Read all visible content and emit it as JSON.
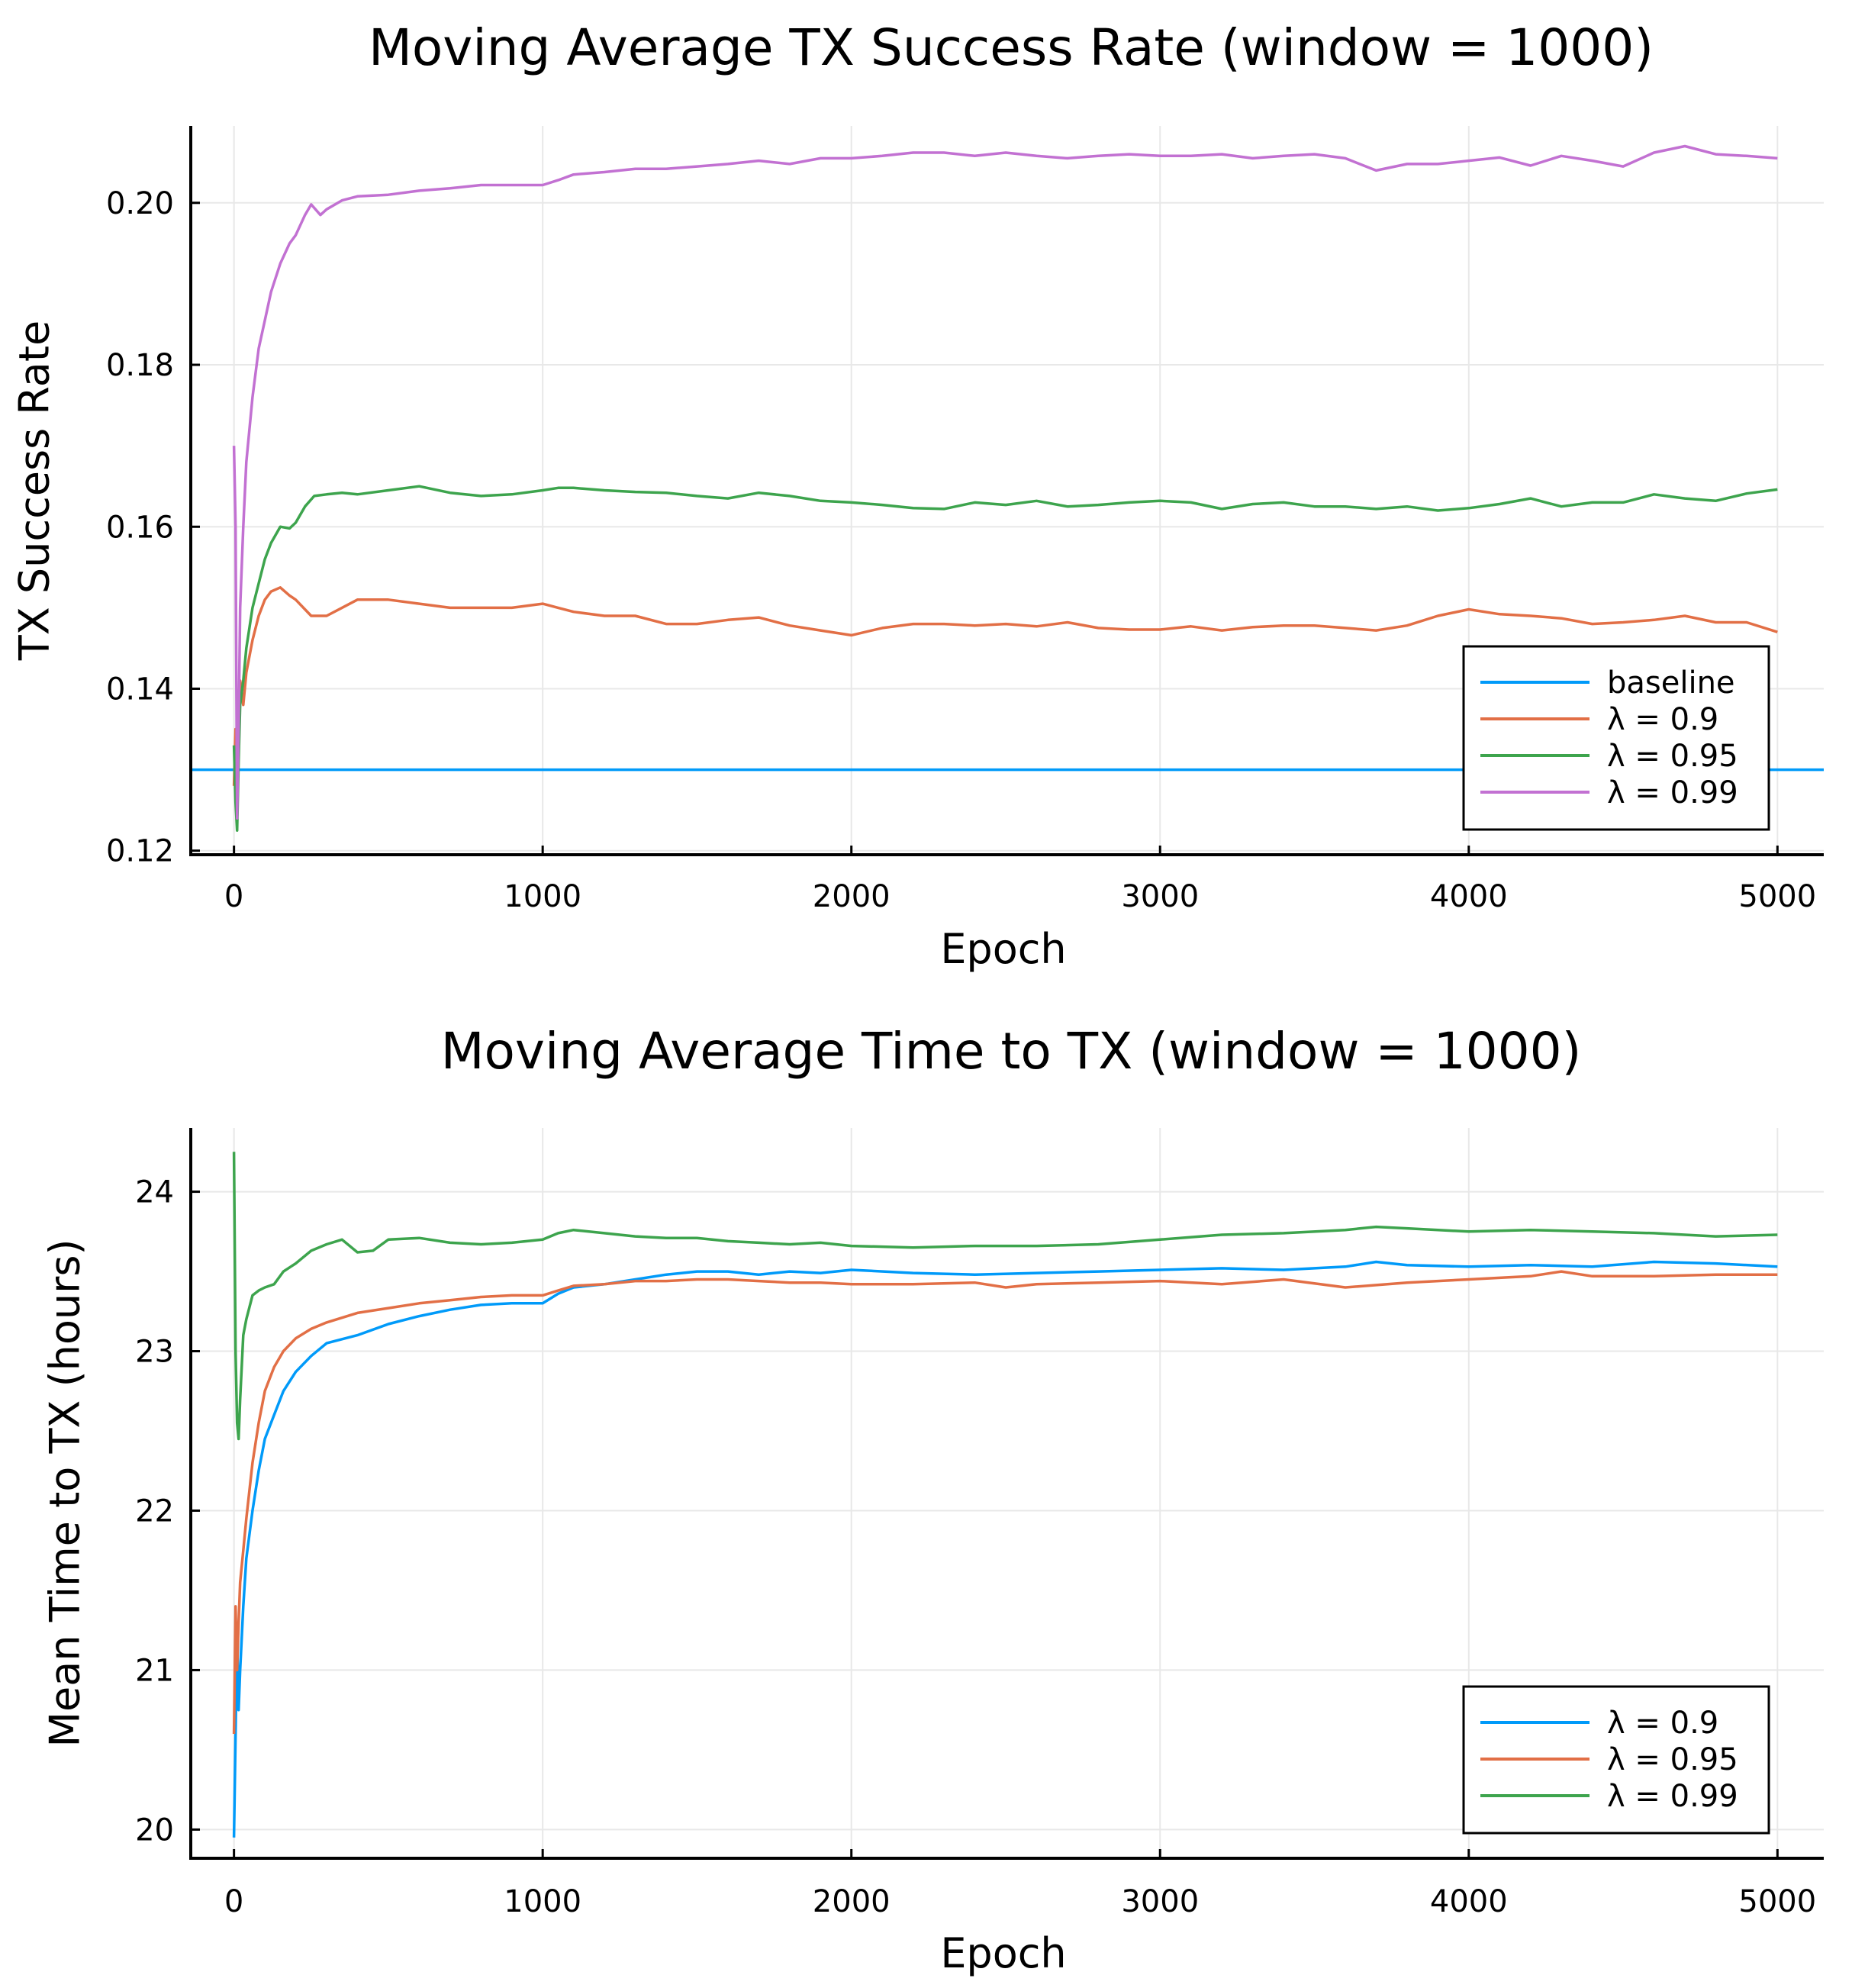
{
  "chart_data": [
    {
      "type": "line",
      "title": "Moving Average TX Success Rate (window = 1000)",
      "xlabel": "Epoch",
      "ylabel": "TX Success Rate",
      "xlim": [
        -140,
        5150
      ],
      "ylim": [
        0.1195,
        0.2095
      ],
      "xticks": [
        0,
        1000,
        2000,
        3000,
        4000,
        5000
      ],
      "xtick_labels": [
        "0",
        "1000",
        "2000",
        "3000",
        "4000",
        "5000"
      ],
      "yticks": [
        0.12,
        0.14,
        0.16,
        0.18,
        0.2
      ],
      "ytick_labels": [
        "0.12",
        "0.14",
        "0.16",
        "0.18",
        "0.20"
      ],
      "grid": true,
      "legend_position": "bottom-right",
      "series": [
        {
          "name": "baseline",
          "color": "#009af9",
          "x": [
            -140,
            5150
          ],
          "y": [
            0.13,
            0.13
          ]
        },
        {
          "name": "λ = 0.9",
          "color": "#e26f46",
          "x": [
            0,
            5,
            10,
            15,
            20,
            30,
            40,
            60,
            80,
            100,
            120,
            150,
            180,
            200,
            250,
            300,
            350,
            400,
            500,
            600,
            700,
            800,
            900,
            1000,
            1050,
            1100,
            1200,
            1300,
            1400,
            1500,
            1600,
            1700,
            1800,
            1900,
            2000,
            2100,
            2200,
            2300,
            2400,
            2500,
            2600,
            2700,
            2800,
            2900,
            3000,
            3100,
            3200,
            3300,
            3400,
            3500,
            3600,
            3700,
            3800,
            3900,
            4000,
            4100,
            4200,
            4300,
            4400,
            4500,
            4600,
            4700,
            4800,
            4900,
            5000
          ],
          "y": [
            0.128,
            0.135,
            0.125,
            0.139,
            0.141,
            0.138,
            0.142,
            0.146,
            0.149,
            0.151,
            0.152,
            0.1525,
            0.1515,
            0.151,
            0.149,
            0.149,
            0.15,
            0.151,
            0.151,
            0.1505,
            0.15,
            0.15,
            0.15,
            0.1505,
            0.15,
            0.1495,
            0.149,
            0.149,
            0.148,
            0.148,
            0.1485,
            0.1488,
            0.1478,
            0.1472,
            0.1466,
            0.1475,
            0.148,
            0.148,
            0.1478,
            0.148,
            0.1477,
            0.1482,
            0.1475,
            0.1473,
            0.1473,
            0.1477,
            0.1472,
            0.1476,
            0.1478,
            0.1478,
            0.1475,
            0.1472,
            0.1478,
            0.149,
            0.1498,
            0.1492,
            0.149,
            0.1487,
            0.148,
            0.1482,
            0.1485,
            0.149,
            0.1482,
            0.1482,
            0.147
          ]
        },
        {
          "name": "λ = 0.95",
          "color": "#3da44d",
          "x": [
            0,
            5,
            10,
            15,
            20,
            30,
            40,
            60,
            80,
            100,
            120,
            150,
            180,
            200,
            230,
            260,
            300,
            350,
            400,
            500,
            600,
            700,
            800,
            900,
            1000,
            1050,
            1100,
            1200,
            1300,
            1400,
            1500,
            1600,
            1700,
            1800,
            1900,
            2000,
            2100,
            2200,
            2300,
            2400,
            2500,
            2600,
            2700,
            2800,
            2900,
            3000,
            3100,
            3200,
            3300,
            3400,
            3500,
            3600,
            3700,
            3800,
            3900,
            4000,
            4100,
            4200,
            4300,
            4400,
            4500,
            4600,
            4700,
            4800,
            4900,
            5000
          ],
          "y": [
            0.133,
            0.126,
            0.1225,
            0.131,
            0.138,
            0.141,
            0.145,
            0.15,
            0.153,
            0.156,
            0.158,
            0.16,
            0.1598,
            0.1605,
            0.1625,
            0.1638,
            0.164,
            0.1642,
            0.164,
            0.1645,
            0.165,
            0.1642,
            0.1638,
            0.164,
            0.1645,
            0.1648,
            0.1648,
            0.1645,
            0.1643,
            0.1642,
            0.1638,
            0.1635,
            0.1642,
            0.1638,
            0.1632,
            0.163,
            0.1627,
            0.1623,
            0.1622,
            0.163,
            0.1627,
            0.1632,
            0.1625,
            0.1627,
            0.163,
            0.1632,
            0.163,
            0.1622,
            0.1628,
            0.163,
            0.1625,
            0.1625,
            0.1622,
            0.1625,
            0.162,
            0.1623,
            0.1628,
            0.1635,
            0.1625,
            0.163,
            0.163,
            0.164,
            0.1635,
            0.1632,
            0.1641,
            0.1646
          ]
        },
        {
          "name": "λ = 0.99",
          "color": "#c271d2",
          "x": [
            0,
            5,
            10,
            15,
            20,
            30,
            40,
            60,
            80,
            100,
            120,
            150,
            180,
            200,
            230,
            250,
            280,
            300,
            350,
            400,
            500,
            600,
            700,
            800,
            900,
            1000,
            1050,
            1100,
            1200,
            1300,
            1400,
            1500,
            1600,
            1700,
            1800,
            1900,
            2000,
            2100,
            2200,
            2300,
            2400,
            2500,
            2600,
            2700,
            2800,
            2900,
            3000,
            3100,
            3200,
            3300,
            3400,
            3500,
            3600,
            3700,
            3800,
            3900,
            4000,
            4100,
            4200,
            4300,
            4400,
            4500,
            4600,
            4700,
            4800,
            4900,
            5000
          ],
          "y": [
            0.17,
            0.16,
            0.124,
            0.135,
            0.15,
            0.16,
            0.168,
            0.176,
            0.182,
            0.1855,
            0.189,
            0.1925,
            0.195,
            0.196,
            0.1985,
            0.1998,
            0.1985,
            0.1992,
            0.2003,
            0.2008,
            0.201,
            0.2015,
            0.2018,
            0.2022,
            0.2022,
            0.2022,
            0.2028,
            0.2035,
            0.2038,
            0.2042,
            0.2042,
            0.2045,
            0.2048,
            0.2052,
            0.2048,
            0.2055,
            0.2055,
            0.2058,
            0.2062,
            0.2062,
            0.2058,
            0.2062,
            0.2058,
            0.2055,
            0.2058,
            0.206,
            0.2058,
            0.2058,
            0.206,
            0.2055,
            0.2058,
            0.206,
            0.2055,
            0.204,
            0.2048,
            0.2048,
            0.2052,
            0.2056,
            0.2046,
            0.2058,
            0.2052,
            0.2045,
            0.2062,
            0.207,
            0.206,
            0.2058,
            0.2055
          ]
        }
      ]
    },
    {
      "type": "line",
      "title": "Moving Average Time to TX (window = 1000)",
      "xlabel": "Epoch",
      "ylabel": "Mean Time to TX (hours)",
      "xlim": [
        -140,
        5150
      ],
      "ylim": [
        19.82,
        24.4
      ],
      "xticks": [
        0,
        1000,
        2000,
        3000,
        4000,
        5000
      ],
      "xtick_labels": [
        "0",
        "1000",
        "2000",
        "3000",
        "4000",
        "5000"
      ],
      "yticks": [
        20,
        21,
        22,
        23,
        24
      ],
      "ytick_labels": [
        "20",
        "21",
        "22",
        "23",
        "24"
      ],
      "grid": true,
      "legend_position": "bottom-right",
      "series": [
        {
          "name": "λ = 0.9",
          "color": "#009af9",
          "x": [
            0,
            5,
            10,
            15,
            20,
            30,
            40,
            60,
            80,
            100,
            130,
            160,
            200,
            250,
            300,
            400,
            500,
            600,
            700,
            800,
            900,
            1000,
            1050,
            1100,
            1200,
            1300,
            1400,
            1500,
            1600,
            1700,
            1800,
            1900,
            2000,
            2200,
            2400,
            2600,
            2800,
            3000,
            3200,
            3400,
            3600,
            3700,
            3800,
            4000,
            4200,
            4400,
            4600,
            4800,
            5000
          ],
          "y": [
            19.95,
            20.6,
            21.2,
            20.75,
            21.0,
            21.4,
            21.7,
            22.0,
            22.25,
            22.45,
            22.6,
            22.75,
            22.87,
            22.97,
            23.05,
            23.1,
            23.17,
            23.22,
            23.26,
            23.29,
            23.3,
            23.3,
            23.36,
            23.4,
            23.42,
            23.45,
            23.48,
            23.5,
            23.5,
            23.48,
            23.5,
            23.49,
            23.51,
            23.49,
            23.48,
            23.49,
            23.5,
            23.51,
            23.52,
            23.51,
            23.53,
            23.56,
            23.54,
            23.53,
            23.54,
            23.53,
            23.56,
            23.55,
            23.53
          ]
        },
        {
          "name": "λ = 0.95",
          "color": "#e26f46",
          "x": [
            0,
            5,
            10,
            15,
            20,
            30,
            40,
            60,
            80,
            100,
            130,
            160,
            200,
            250,
            300,
            400,
            500,
            600,
            700,
            800,
            900,
            1000,
            1050,
            1100,
            1200,
            1300,
            1400,
            1500,
            1600,
            1700,
            1800,
            1900,
            2000,
            2200,
            2400,
            2500,
            2600,
            2800,
            3000,
            3200,
            3400,
            3600,
            3800,
            4000,
            4200,
            4300,
            4400,
            4600,
            4800,
            5000
          ],
          "y": [
            20.6,
            21.4,
            21.0,
            21.3,
            21.55,
            21.75,
            21.95,
            22.3,
            22.55,
            22.75,
            22.9,
            23.0,
            23.08,
            23.14,
            23.18,
            23.24,
            23.27,
            23.3,
            23.32,
            23.34,
            23.35,
            23.35,
            23.38,
            23.41,
            23.42,
            23.44,
            23.44,
            23.45,
            23.45,
            23.44,
            23.43,
            23.43,
            23.42,
            23.42,
            23.43,
            23.4,
            23.42,
            23.43,
            23.44,
            23.42,
            23.45,
            23.4,
            23.43,
            23.45,
            23.47,
            23.5,
            23.47,
            23.47,
            23.48,
            23.48
          ]
        },
        {
          "name": "λ = 0.99",
          "color": "#3da44d",
          "x": [
            0,
            5,
            10,
            15,
            20,
            30,
            40,
            60,
            80,
            100,
            130,
            160,
            200,
            250,
            300,
            350,
            400,
            450,
            500,
            600,
            700,
            800,
            900,
            1000,
            1050,
            1100,
            1200,
            1300,
            1400,
            1500,
            1600,
            1700,
            1800,
            1900,
            2000,
            2200,
            2400,
            2600,
            2800,
            3000,
            3200,
            3400,
            3600,
            3700,
            3800,
            4000,
            4200,
            4400,
            4600,
            4800,
            5000
          ],
          "y": [
            24.25,
            23.0,
            22.55,
            22.45,
            22.7,
            23.1,
            23.2,
            23.35,
            23.38,
            23.4,
            23.42,
            23.5,
            23.55,
            23.63,
            23.67,
            23.7,
            23.62,
            23.63,
            23.7,
            23.71,
            23.68,
            23.67,
            23.68,
            23.7,
            23.74,
            23.76,
            23.74,
            23.72,
            23.71,
            23.71,
            23.69,
            23.68,
            23.67,
            23.68,
            23.66,
            23.65,
            23.66,
            23.66,
            23.67,
            23.7,
            23.73,
            23.74,
            23.76,
            23.78,
            23.77,
            23.75,
            23.76,
            23.75,
            23.74,
            23.72,
            23.73
          ]
        }
      ]
    }
  ]
}
